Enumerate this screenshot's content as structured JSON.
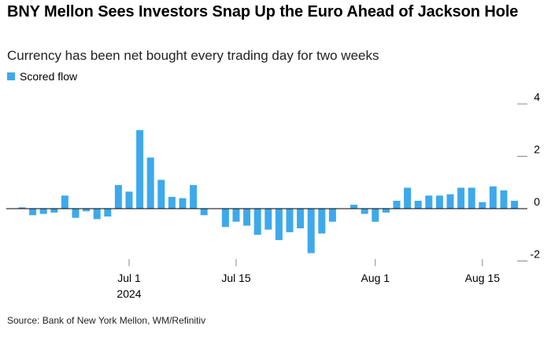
{
  "title": "BNY Mellon Sees Investors Snap Up the Euro Ahead of Jackson Hole",
  "subtitle": "Currency has been net bought every trading day for two weeks",
  "source": "Source: Bank of New York Mellon, WM/Refinitiv",
  "colors": {
    "bar": "#3da9ec",
    "axis": "#000000",
    "tick": "#888888"
  },
  "chart_data": {
    "type": "bar",
    "title": "BNY Mellon Sees Investors Snap Up the Euro Ahead of Jackson Hole",
    "subtitle": "Currency has been net bought every trading day for two weeks",
    "xlabel": "",
    "ylabel": "",
    "ylim": [
      -2.4,
      4.2
    ],
    "y_ticks": [
      4,
      2,
      0,
      -2
    ],
    "y_tick_labels": [
      "4",
      "2",
      "0",
      "-2"
    ],
    "legend": "top-left",
    "series": [
      {
        "name": "Scored flow",
        "values": [
          0.05,
          -0.25,
          -0.2,
          -0.15,
          0.5,
          -0.35,
          -0.1,
          -0.4,
          -0.3,
          0.9,
          0.65,
          3.0,
          1.95,
          1.1,
          0.45,
          0.4,
          0.9,
          -0.25,
          0.0,
          -0.7,
          -0.5,
          -0.65,
          -1.0,
          -0.8,
          -1.2,
          -0.9,
          -0.75,
          -1.7,
          -0.95,
          -0.5,
          0.0,
          0.15,
          -0.2,
          -0.5,
          -0.15,
          0.3,
          0.8,
          0.3,
          0.5,
          0.5,
          0.55,
          0.8,
          0.8,
          0.25,
          0.85,
          0.7,
          0.3
        ]
      }
    ],
    "x_ticks": [
      {
        "label": "Jul 1",
        "sublabel": "2024",
        "index": 10
      },
      {
        "label": "Jul 15",
        "sublabel": "",
        "index": 20
      },
      {
        "label": "Aug 1",
        "sublabel": "",
        "index": 33
      },
      {
        "label": "Aug 15",
        "sublabel": "",
        "index": 43
      }
    ]
  }
}
